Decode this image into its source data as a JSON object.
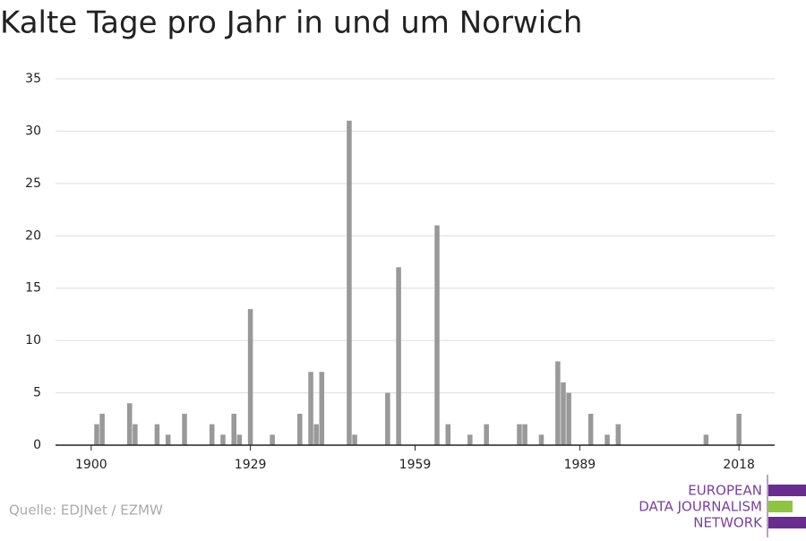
{
  "chart_data": {
    "type": "bar",
    "title": "Kalte Tage pro Jahr in und um Norwich",
    "x": [
      1901,
      1902,
      1907,
      1908,
      1912,
      1914,
      1917,
      1922,
      1924,
      1926,
      1927,
      1929,
      1933,
      1938,
      1940,
      1941,
      1942,
      1947,
      1948,
      1954,
      1956,
      1963,
      1965,
      1969,
      1972,
      1978,
      1979,
      1982,
      1985,
      1986,
      1987,
      1991,
      1994,
      1996,
      2012,
      2018
    ],
    "values": [
      2,
      3,
      4,
      2,
      2,
      1,
      3,
      2,
      1,
      3,
      1,
      13,
      1,
      3,
      7,
      2,
      7,
      31,
      1,
      5,
      17,
      21,
      2,
      1,
      2,
      2,
      2,
      1,
      8,
      6,
      5,
      3,
      1,
      2,
      1,
      3
    ],
    "color": "#999999",
    "xlim": [
      1893.5,
      2024.5
    ],
    "xticks": [
      1900,
      1929,
      1959,
      1989,
      2018
    ],
    "ylim": [
      0,
      35
    ],
    "yticks": [
      0,
      5,
      10,
      15,
      20,
      25,
      30,
      35
    ],
    "grid": true,
    "source": "Quelle: EDJNet / EZMW"
  },
  "logo": {
    "lines": [
      "EUROPEAN",
      "DATA JOURNALISM",
      "NETWORK"
    ]
  }
}
